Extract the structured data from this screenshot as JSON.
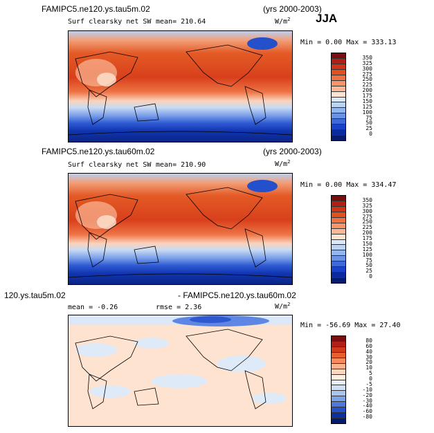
{
  "season": "JJA",
  "units_base": "W/m",
  "units_exp": "2",
  "panels": [
    {
      "case_title": "FAMIPC5.ne120.ys.tau5m.02",
      "years": "(yrs 2000-2003)",
      "subtitle": "Surf clearsky net SW",
      "stat_text": "mean= 210.64",
      "minmax": "Min =    0.00 Max = 333.13",
      "colorbar": {
        "levels": [
          "350",
          "325",
          "300",
          "275",
          "250",
          "225",
          "200",
          "175",
          "150",
          "125",
          "100",
          "75",
          "50",
          "25",
          "0"
        ],
        "colors": [
          "#7a0d0d",
          "#b11f16",
          "#cf3318",
          "#e3501f",
          "#ef7040",
          "#f79468",
          "#fbb896",
          "#fde3d0",
          "#dde8f7",
          "#bdd3f2",
          "#93b6ee",
          "#6a93e6",
          "#3f68d9",
          "#1a42c8",
          "#0b2a9e",
          "#061a6e"
        ]
      }
    },
    {
      "case_title": "FAMIPC5.ne120.ys.tau60m.02",
      "years": "(yrs 2000-2003)",
      "subtitle": "Surf clearsky net SW",
      "stat_text": "mean= 210.90",
      "minmax": "Min =    0.00 Max = 334.47",
      "colorbar": {
        "levels": [
          "350",
          "325",
          "300",
          "275",
          "250",
          "225",
          "200",
          "175",
          "150",
          "125",
          "100",
          "75",
          "50",
          "25",
          "0"
        ],
        "colors": [
          "#7a0d0d",
          "#b11f16",
          "#cf3318",
          "#e3501f",
          "#ef7040",
          "#f79468",
          "#fbb896",
          "#fde3d0",
          "#dde8f7",
          "#bdd3f2",
          "#93b6ee",
          "#6a93e6",
          "#3f68d9",
          "#1a42c8",
          "#0b2a9e",
          "#061a6e"
        ]
      }
    },
    {
      "case_title_left": "120.ys.tau5m.02",
      "case_title_right": "- FAMIPC5.ne120.ys.tau60m.02",
      "mean_text": "mean =   -0.26",
      "rmse_text": "rmse =   2.36",
      "minmax": "Min = -56.69 Max =  27.40",
      "colorbar": {
        "levels": [
          "80",
          "60",
          "40",
          "30",
          "20",
          "10",
          "5",
          "0",
          "-5",
          "-10",
          "-20",
          "-30",
          "-40",
          "-60",
          "-80"
        ],
        "colors": [
          "#7a0d0d",
          "#b11f16",
          "#d23a1c",
          "#e9602f",
          "#f58a5c",
          "#fab38e",
          "#fdd6bf",
          "#fdece0",
          "#e6effa",
          "#cfe0f6",
          "#a9c6f1",
          "#7aa3ea",
          "#4d78de",
          "#2550cc",
          "#0d2fa2",
          "#061a6e"
        ]
      }
    }
  ]
}
